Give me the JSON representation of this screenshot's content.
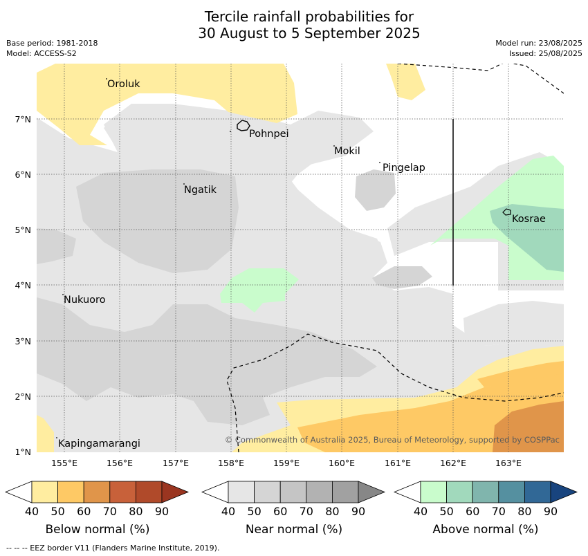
{
  "title_line1": "Tercile rainfall probabilities for",
  "title_line2": "30 August to 5 September 2025",
  "meta": {
    "base_period": "Base period: 1981-2018",
    "model": "Model: ACCESS-S2",
    "model_run": "Model run: 23/08/2025",
    "issued": "Issued: 25/08/2025"
  },
  "map": {
    "lat_labels": [
      "7°N",
      "6°N",
      "5°N",
      "4°N",
      "3°N",
      "2°N",
      "1°N"
    ],
    "lon_labels": [
      "155°E",
      "156°E",
      "157°E",
      "158°E",
      "159°E",
      "160°E",
      "161°E",
      "162°E",
      "163°E"
    ],
    "places": [
      "Oroluk",
      "Pohnpei",
      "Mokil",
      "Pingelap",
      "Ngatik",
      "Kosrae",
      "Nukuoro",
      "Kapingamarangi"
    ],
    "copyright": "© Commonwealth of Australia 2025, Bureau of Meteorology, supported by COSPPac"
  },
  "colorbars": [
    {
      "title": "Below normal (%)",
      "ticks": [
        "40",
        "50",
        "60",
        "70",
        "80",
        "90"
      ],
      "colors": [
        "#ffffff",
        "#ffeda0",
        "#fec965",
        "#e0954a",
        "#c8613a",
        "#b04a2a",
        "#9a3520"
      ]
    },
    {
      "title": "Near normal (%)",
      "ticks": [
        "40",
        "50",
        "60",
        "70",
        "80",
        "90"
      ],
      "colors": [
        "#ffffff",
        "#e6e6e6",
        "#d5d5d5",
        "#c5c5c5",
        "#b2b2b2",
        "#a1a1a1",
        "#878787"
      ]
    },
    {
      "title": "Above normal (%)",
      "ticks": [
        "40",
        "50",
        "60",
        "70",
        "80",
        "90"
      ],
      "colors": [
        "#ffffff",
        "#c9fccc",
        "#a1d9bc",
        "#80b5ad",
        "#5590a0",
        "#316896",
        "#18447e"
      ]
    }
  ],
  "footnote": "--  --  -- EEZ border V11 (Flanders Marine Institute, 2019)."
}
